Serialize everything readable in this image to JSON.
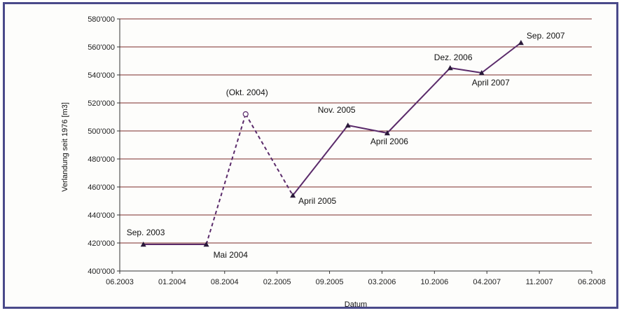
{
  "chart_data": {
    "type": "line",
    "title": "",
    "xlabel": "Datum",
    "ylabel": "Verlandung seit 1976 [m3]",
    "ylim": [
      400000,
      580000
    ],
    "y_ticks": [
      "400'000",
      "420'000",
      "440'000",
      "460'000",
      "480'000",
      "500'000",
      "520'000",
      "540'000",
      "560'000",
      "580'000"
    ],
    "x_ticks": [
      "06.2003",
      "01.2004",
      "08.2004",
      "02.2005",
      "09.2005",
      "03.2006",
      "10.2006",
      "04.2007",
      "11.2007",
      "06.2008"
    ],
    "x_range_months": [
      0,
      60
    ],
    "grid": "horizontal",
    "colors": {
      "line": "#5a2a6a",
      "grid": "#7a2a2a",
      "axis": "#333333"
    },
    "series": [
      {
        "points": [
          {
            "x": "2003-09",
            "y": 419000,
            "label": "Sep. 2003"
          },
          {
            "x": "2004-05",
            "y": 419000,
            "label": "Mai 2004"
          },
          {
            "x": "2004-10",
            "y": 512000,
            "label": "(Okt. 2004)",
            "style": "dashed",
            "marker": "circle"
          },
          {
            "x": "2005-04",
            "y": 454000,
            "label": "April 2005",
            "style": "dashed"
          },
          {
            "x": "2005-11",
            "y": 504000,
            "label": "Nov. 2005"
          },
          {
            "x": "2006-04",
            "y": 498500,
            "label": "April 2006"
          },
          {
            "x": "2006-12",
            "y": 545000,
            "label": "Dez. 2006"
          },
          {
            "x": "2007-04",
            "y": 541500,
            "label": "April 2007"
          },
          {
            "x": "2007-09",
            "y": 563000,
            "label": "Sep. 2007"
          }
        ]
      }
    ]
  }
}
